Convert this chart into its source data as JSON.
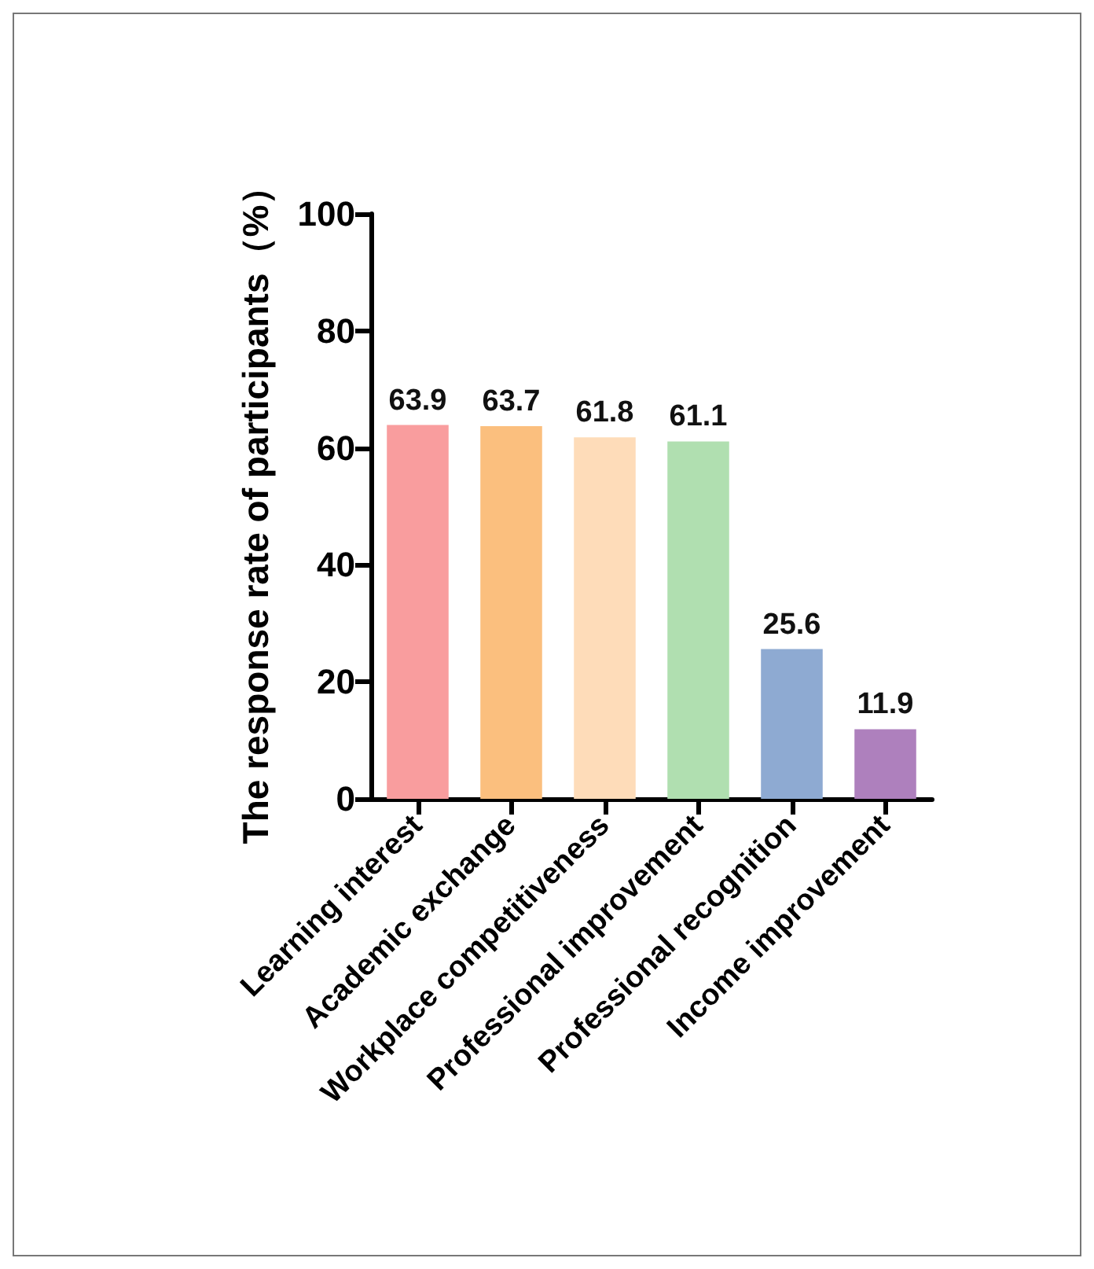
{
  "chart_data": {
    "type": "bar",
    "ylabel": "The response rate of participants（%）",
    "categories": [
      "Learning interest",
      "Academic exchange",
      "Workplace competitiveness",
      "Professional improvement",
      "Professional recognition",
      "Income improvement"
    ],
    "values": [
      63.9,
      63.7,
      61.8,
      61.1,
      25.6,
      11.9
    ],
    "colors": [
      "#f99d9e",
      "#fbbf7e",
      "#fedcb9",
      "#b0dfb0",
      "#8eaad2",
      "#ae80bd"
    ],
    "ylim": [
      0,
      100
    ],
    "yticks": [
      0,
      20,
      40,
      60,
      80,
      100
    ],
    "data_labels": true
  }
}
